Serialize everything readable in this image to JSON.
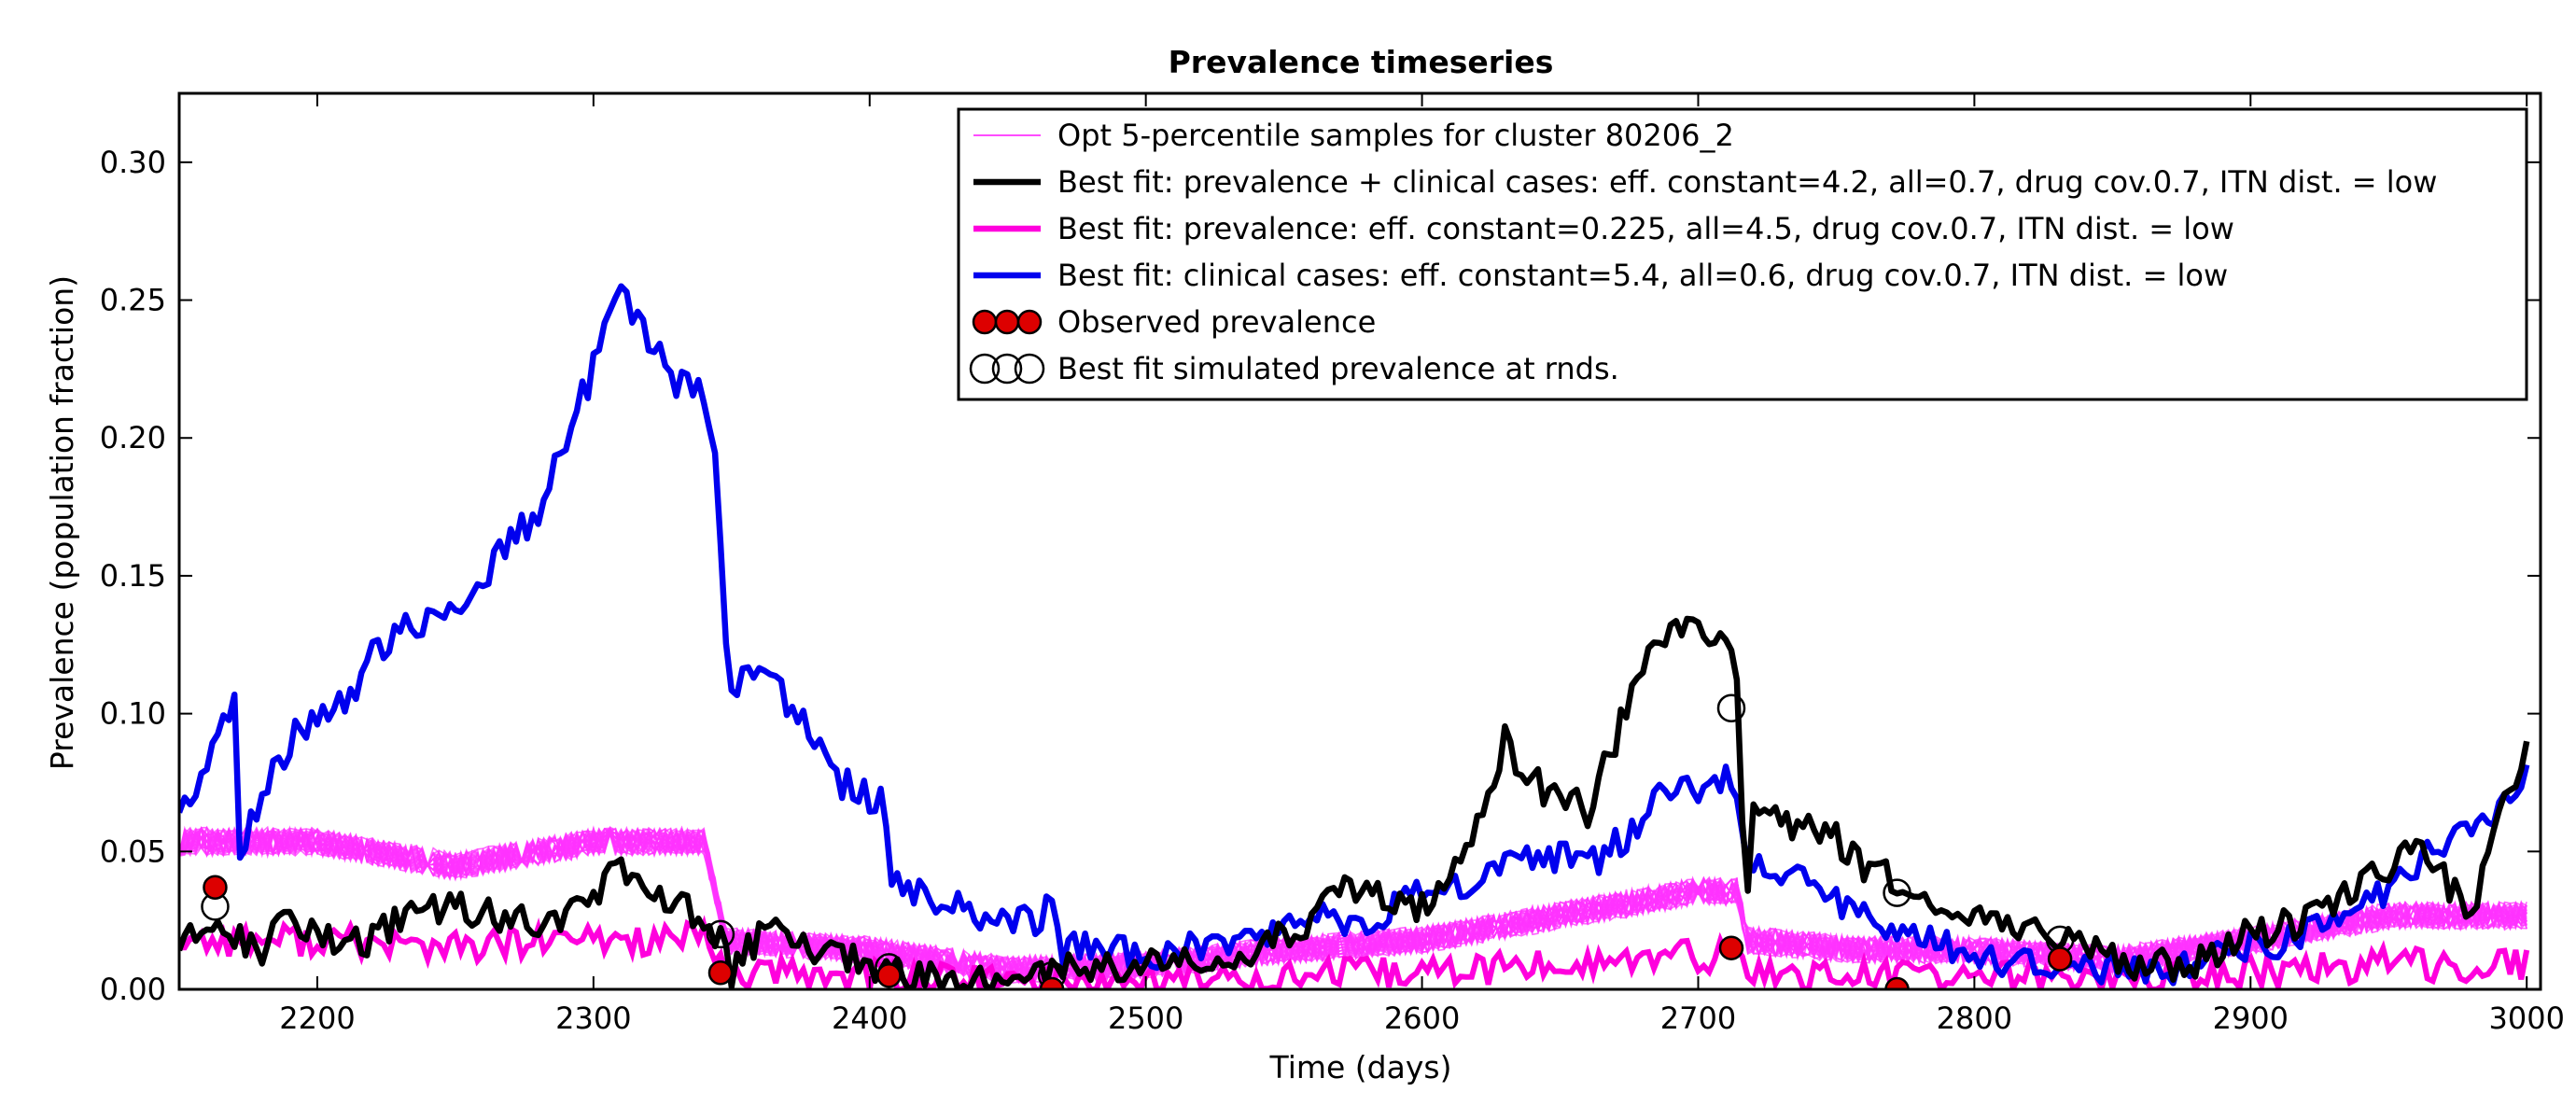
{
  "chart_data": {
    "type": "line",
    "title": "Prevalence timeseries",
    "xlabel": "Time (days)",
    "ylabel": "Prevalence (population fraction)",
    "xlim": [
      2150,
      3005
    ],
    "ylim": [
      0.0,
      0.325
    ],
    "xticks": [
      2200,
      2300,
      2400,
      2500,
      2600,
      2700,
      2800,
      2900,
      3000
    ],
    "xtick_labels": [
      "2200",
      "2300",
      "2400",
      "2500",
      "2600",
      "2700",
      "2800",
      "2900",
      "3000"
    ],
    "yticks": [
      0.0,
      0.05,
      0.1,
      0.15,
      0.2,
      0.25,
      0.3
    ],
    "ytick_labels": [
      "0.00",
      "0.05",
      "0.10",
      "0.15",
      "0.20",
      "0.25",
      "0.30"
    ],
    "grid": false,
    "legend_position": "top-right",
    "colors": {
      "samples": "#ff33ff",
      "best_both": "#000000",
      "best_prev": "#ff00dd",
      "best_clin": "#0000ee",
      "observed": "#dd0000"
    },
    "legend": [
      {
        "label": "Opt 5-percentile samples for cluster 80206_2",
        "style": "thin-line",
        "color": "#ff33ff"
      },
      {
        "label": "Best fit: prevalence + clinical cases: eff. constant=4.2, all=0.7, drug cov.0.7, ITN dist. = low",
        "style": "thick-line",
        "color": "#000000"
      },
      {
        "label": "Best fit: prevalence: eff. constant=0.225, all=4.5, drug cov.0.7, ITN dist. = low",
        "style": "thick-line",
        "color": "#ff00dd"
      },
      {
        "label": "Best fit: clinical cases: eff. constant=5.4, all=0.6, drug cov.0.7, ITN dist. = low",
        "style": "thick-line",
        "color": "#0000ee"
      },
      {
        "label": "Observed prevalence",
        "style": "filled-circles",
        "color": "#dd0000"
      },
      {
        "label": "Best fit simulated prevalence at rnds.",
        "style": "open-circles",
        "color": "#000000"
      }
    ],
    "series": [
      {
        "name": "Best fit: clinical cases: eff. constant=5.4, all=0.6, drug cov.0.7, ITN dist. = low",
        "x": [
          2150,
          2160,
          2170,
          2172,
          2180,
          2190,
          2200,
          2210,
          2220,
          2230,
          2240,
          2250,
          2260,
          2270,
          2280,
          2290,
          2300,
          2305,
          2310,
          2320,
          2330,
          2340,
          2345,
          2348,
          2350,
          2360,
          2370,
          2380,
          2390,
          2400,
          2405,
          2408,
          2420,
          2440,
          2460,
          2465,
          2470,
          2480,
          2500,
          2520,
          2540,
          2560,
          2580,
          2600,
          2620,
          2640,
          2660,
          2680,
          2690,
          2700,
          2710,
          2715,
          2717,
          2720,
          2740,
          2760,
          2770,
          2780,
          2800,
          2820,
          2840,
          2860,
          2870,
          2880,
          2900,
          2920,
          2940,
          2960,
          2980,
          2990,
          3000
        ],
        "y": [
          0.065,
          0.08,
          0.105,
          0.052,
          0.07,
          0.09,
          0.1,
          0.105,
          0.12,
          0.13,
          0.135,
          0.14,
          0.15,
          0.165,
          0.17,
          0.2,
          0.225,
          0.24,
          0.25,
          0.235,
          0.22,
          0.215,
          0.19,
          0.12,
          0.105,
          0.12,
          0.105,
          0.09,
          0.075,
          0.07,
          0.068,
          0.04,
          0.035,
          0.025,
          0.025,
          0.03,
          0.015,
          0.015,
          0.012,
          0.015,
          0.02,
          0.025,
          0.025,
          0.035,
          0.04,
          0.05,
          0.045,
          0.06,
          0.075,
          0.07,
          0.075,
          0.065,
          0.04,
          0.045,
          0.04,
          0.025,
          0.02,
          0.02,
          0.012,
          0.01,
          0.008,
          0.008,
          0.005,
          0.01,
          0.015,
          0.02,
          0.03,
          0.045,
          0.06,
          0.065,
          0.078
        ]
      },
      {
        "name": "Best fit: prevalence + clinical cases: eff. constant=4.2, all=0.7, drug cov.0.7, ITN dist. = low",
        "x": [
          2150,
          2160,
          2170,
          2180,
          2190,
          2200,
          2210,
          2220,
          2230,
          2250,
          2270,
          2290,
          2300,
          2310,
          2320,
          2330,
          2340,
          2345,
          2350,
          2360,
          2370,
          2390,
          2400,
          2410,
          2420,
          2440,
          2460,
          2480,
          2500,
          2520,
          2540,
          2560,
          2570,
          2580,
          2600,
          2610,
          2620,
          2630,
          2640,
          2650,
          2660,
          2670,
          2680,
          2690,
          2700,
          2710,
          2715,
          2717,
          2720,
          2730,
          2750,
          2760,
          2770,
          2780,
          2800,
          2820,
          2830,
          2840,
          2860,
          2880,
          2900,
          2920,
          2940,
          2960,
          2980,
          2990,
          3000
        ],
        "y": [
          0.015,
          0.025,
          0.02,
          0.015,
          0.025,
          0.02,
          0.015,
          0.018,
          0.025,
          0.03,
          0.025,
          0.025,
          0.035,
          0.045,
          0.038,
          0.03,
          0.025,
          0.02,
          0.005,
          0.02,
          0.02,
          0.01,
          0.01,
          0.005,
          0.005,
          0.002,
          0.005,
          0.008,
          0.01,
          0.012,
          0.015,
          0.025,
          0.04,
          0.035,
          0.03,
          0.04,
          0.06,
          0.09,
          0.075,
          0.07,
          0.065,
          0.09,
          0.12,
          0.13,
          0.135,
          0.125,
          0.11,
          0.02,
          0.07,
          0.06,
          0.055,
          0.045,
          0.04,
          0.03,
          0.025,
          0.02,
          0.018,
          0.015,
          0.008,
          0.01,
          0.02,
          0.025,
          0.04,
          0.05,
          0.03,
          0.06,
          0.09
        ]
      }
    ],
    "sample_series_count": 30,
    "observed_prevalence": {
      "name": "Observed prevalence",
      "x": [
        2163,
        2346,
        2407,
        2466,
        2712,
        2772,
        2831
      ],
      "y": [
        0.037,
        0.006,
        0.005,
        0.0,
        0.015,
        0.0,
        0.011
      ]
    },
    "simulated_prevalence_at_rnds": {
      "name": "Best fit simulated prevalence at rnds.",
      "x": [
        2163,
        2346,
        2407,
        2466,
        2712,
        2772,
        2831
      ],
      "y": [
        0.03,
        0.02,
        0.008,
        0.005,
        0.102,
        0.035,
        0.018
      ]
    }
  }
}
